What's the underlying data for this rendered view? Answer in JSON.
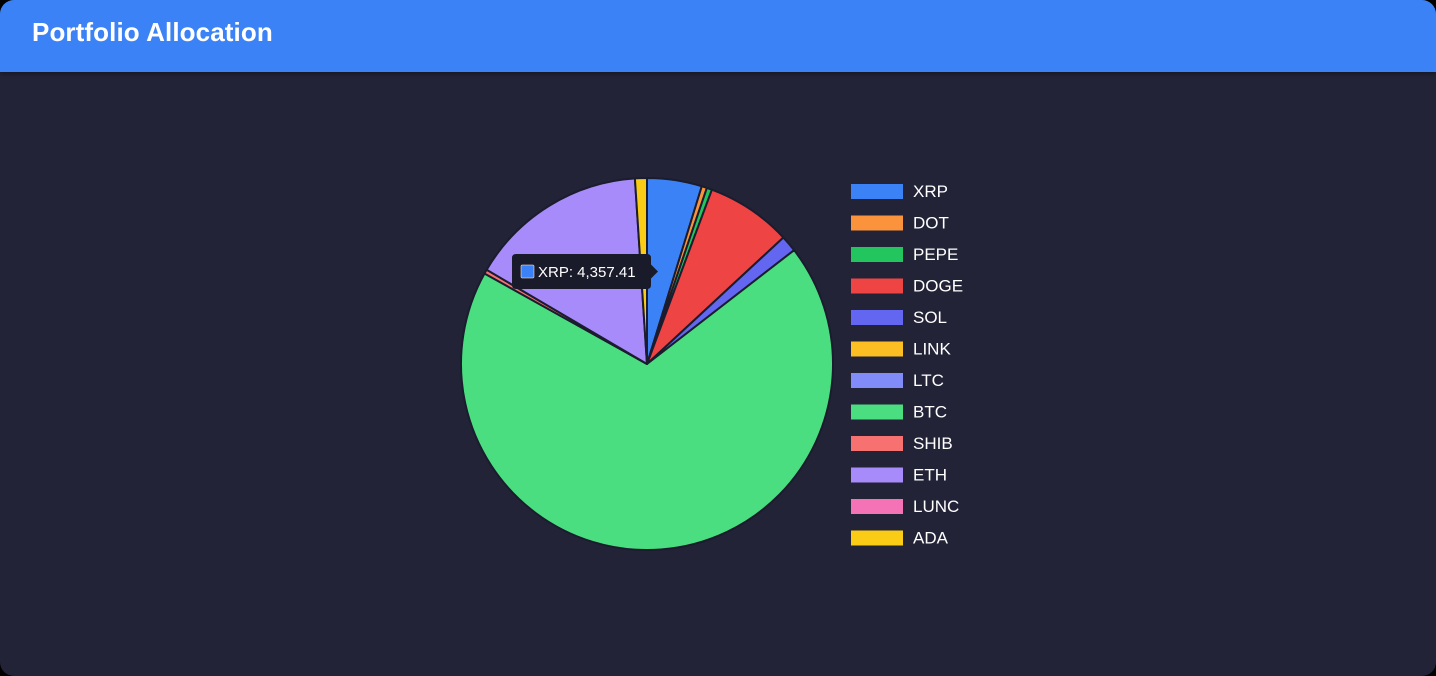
{
  "header": {
    "title": "Portfolio Allocation"
  },
  "colors": {
    "header_bg": "#3b82f6",
    "panel_bg": "#222337",
    "slice_border": "#1b1c2e",
    "tooltip_bg": "#1a1b2a"
  },
  "chart_data": {
    "type": "pie",
    "title": "",
    "legend_position": "right",
    "categories": [
      "XRP",
      "DOT",
      "PEPE",
      "DOGE",
      "SOL",
      "LINK",
      "LTC",
      "BTC",
      "SHIB",
      "ETH",
      "LUNC",
      "ADA"
    ],
    "values": [
      4357.41,
      420,
      420,
      6800,
      1300,
      0,
      0,
      62800,
      340,
      14200,
      0,
      950
    ],
    "colors": [
      "#3b82f6",
      "#fb923c",
      "#22c55e",
      "#ef4444",
      "#6366f1",
      "#fbbf24",
      "#818cf8",
      "#4ade80",
      "#f87171",
      "#a78bfa",
      "#f472b6",
      "#facc15"
    ],
    "tooltip": {
      "series": "XRP",
      "text": "XRP: 4,357.41"
    }
  }
}
